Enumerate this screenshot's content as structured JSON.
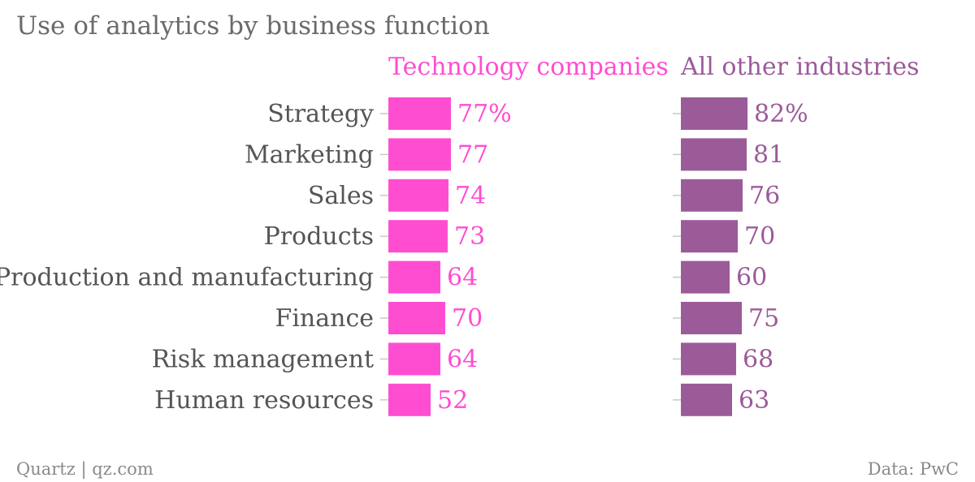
{
  "chart_data": {
    "type": "bar",
    "title": "Use of analytics by business function",
    "categories": [
      "Strategy",
      "Marketing",
      "Sales",
      "Products",
      "Production and manufacturing",
      "Finance",
      "Risk management",
      "Human resources"
    ],
    "series": [
      {
        "name": "Technology companies",
        "color": "#ff4dd2",
        "values": [
          77,
          77,
          74,
          73,
          64,
          70,
          64,
          52
        ],
        "labels": [
          "77%",
          "77",
          "74",
          "73",
          "64",
          "70",
          "64",
          "52"
        ]
      },
      {
        "name": "All other industries",
        "color": "#9b5b99",
        "values": [
          82,
          81,
          76,
          70,
          60,
          75,
          68,
          63
        ],
        "labels": [
          "82%",
          "81",
          "76",
          "70",
          "60",
          "75",
          "68",
          "63"
        ]
      }
    ],
    "orientation": "horizontal",
    "layout": "small-multiples",
    "xlim": [
      0,
      100
    ]
  },
  "footer": {
    "source_left": "Quartz | qz.com",
    "source_right": "Data: PwC"
  }
}
